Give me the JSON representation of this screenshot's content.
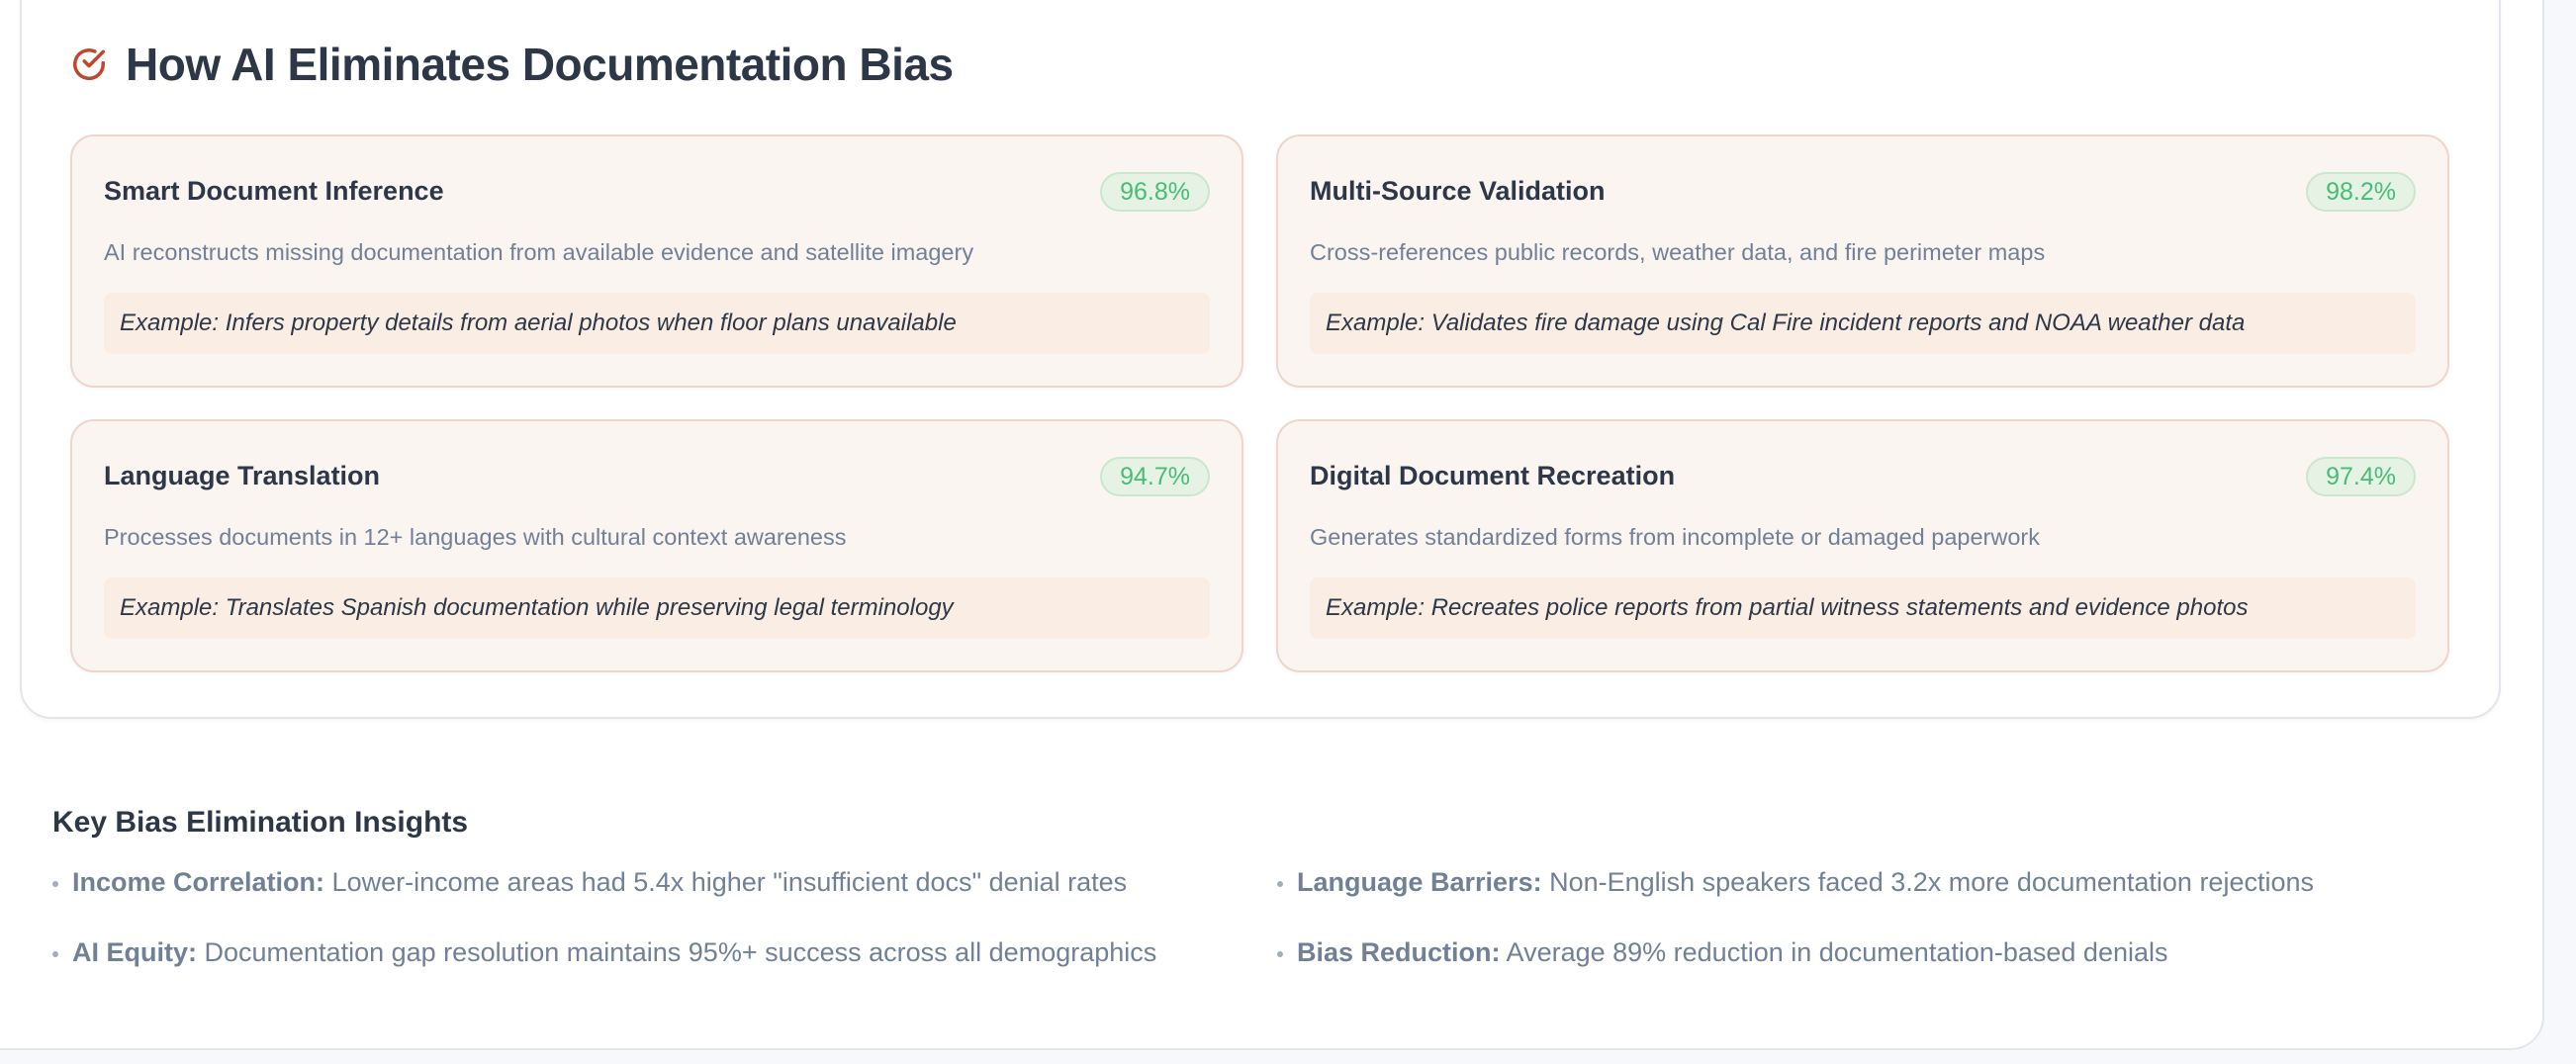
{
  "section": {
    "title": "How AI Eliminates Documentation Bias",
    "icon": "check-circle-icon",
    "accent_color": "#c0472a"
  },
  "cards": [
    {
      "title": "Smart Document Inference",
      "badge": "96.8%",
      "description": "AI reconstructs missing documentation from available evidence and satellite imagery",
      "example": "Example: Infers property details from aerial photos when floor plans unavailable"
    },
    {
      "title": "Multi-Source Validation",
      "badge": "98.2%",
      "description": "Cross-references public records, weather data, and fire perimeter maps",
      "example": "Example: Validates fire damage using Cal Fire incident reports and NOAA weather data"
    },
    {
      "title": "Language Translation",
      "badge": "94.7%",
      "description": "Processes documents in 12+ languages with cultural context awareness",
      "example": "Example: Translates Spanish documentation while preserving legal terminology"
    },
    {
      "title": "Digital Document Recreation",
      "badge": "97.4%",
      "description": "Generates standardized forms from incomplete or damaged paperwork",
      "example": "Example: Recreates police reports from partial witness statements and evidence photos"
    }
  ],
  "insights": {
    "heading": "Key Bias Elimination Insights",
    "items": [
      {
        "label": "Income Correlation:",
        "text": " Lower-income areas had 5.4x higher \"insufficient docs\" denial rates"
      },
      {
        "label": "Language Barriers:",
        "text": " Non-English speakers faced 3.2x more documentation rejections"
      },
      {
        "label": "AI Equity:",
        "text": " Documentation gap resolution maintains 95%+ success across all demographics"
      },
      {
        "label": "Bias Reduction:",
        "text": " Average 89% reduction in documentation-based denials"
      }
    ]
  },
  "colors": {
    "badge_text": "#48bb78",
    "heading": "#2d3748",
    "muted": "#718096"
  }
}
